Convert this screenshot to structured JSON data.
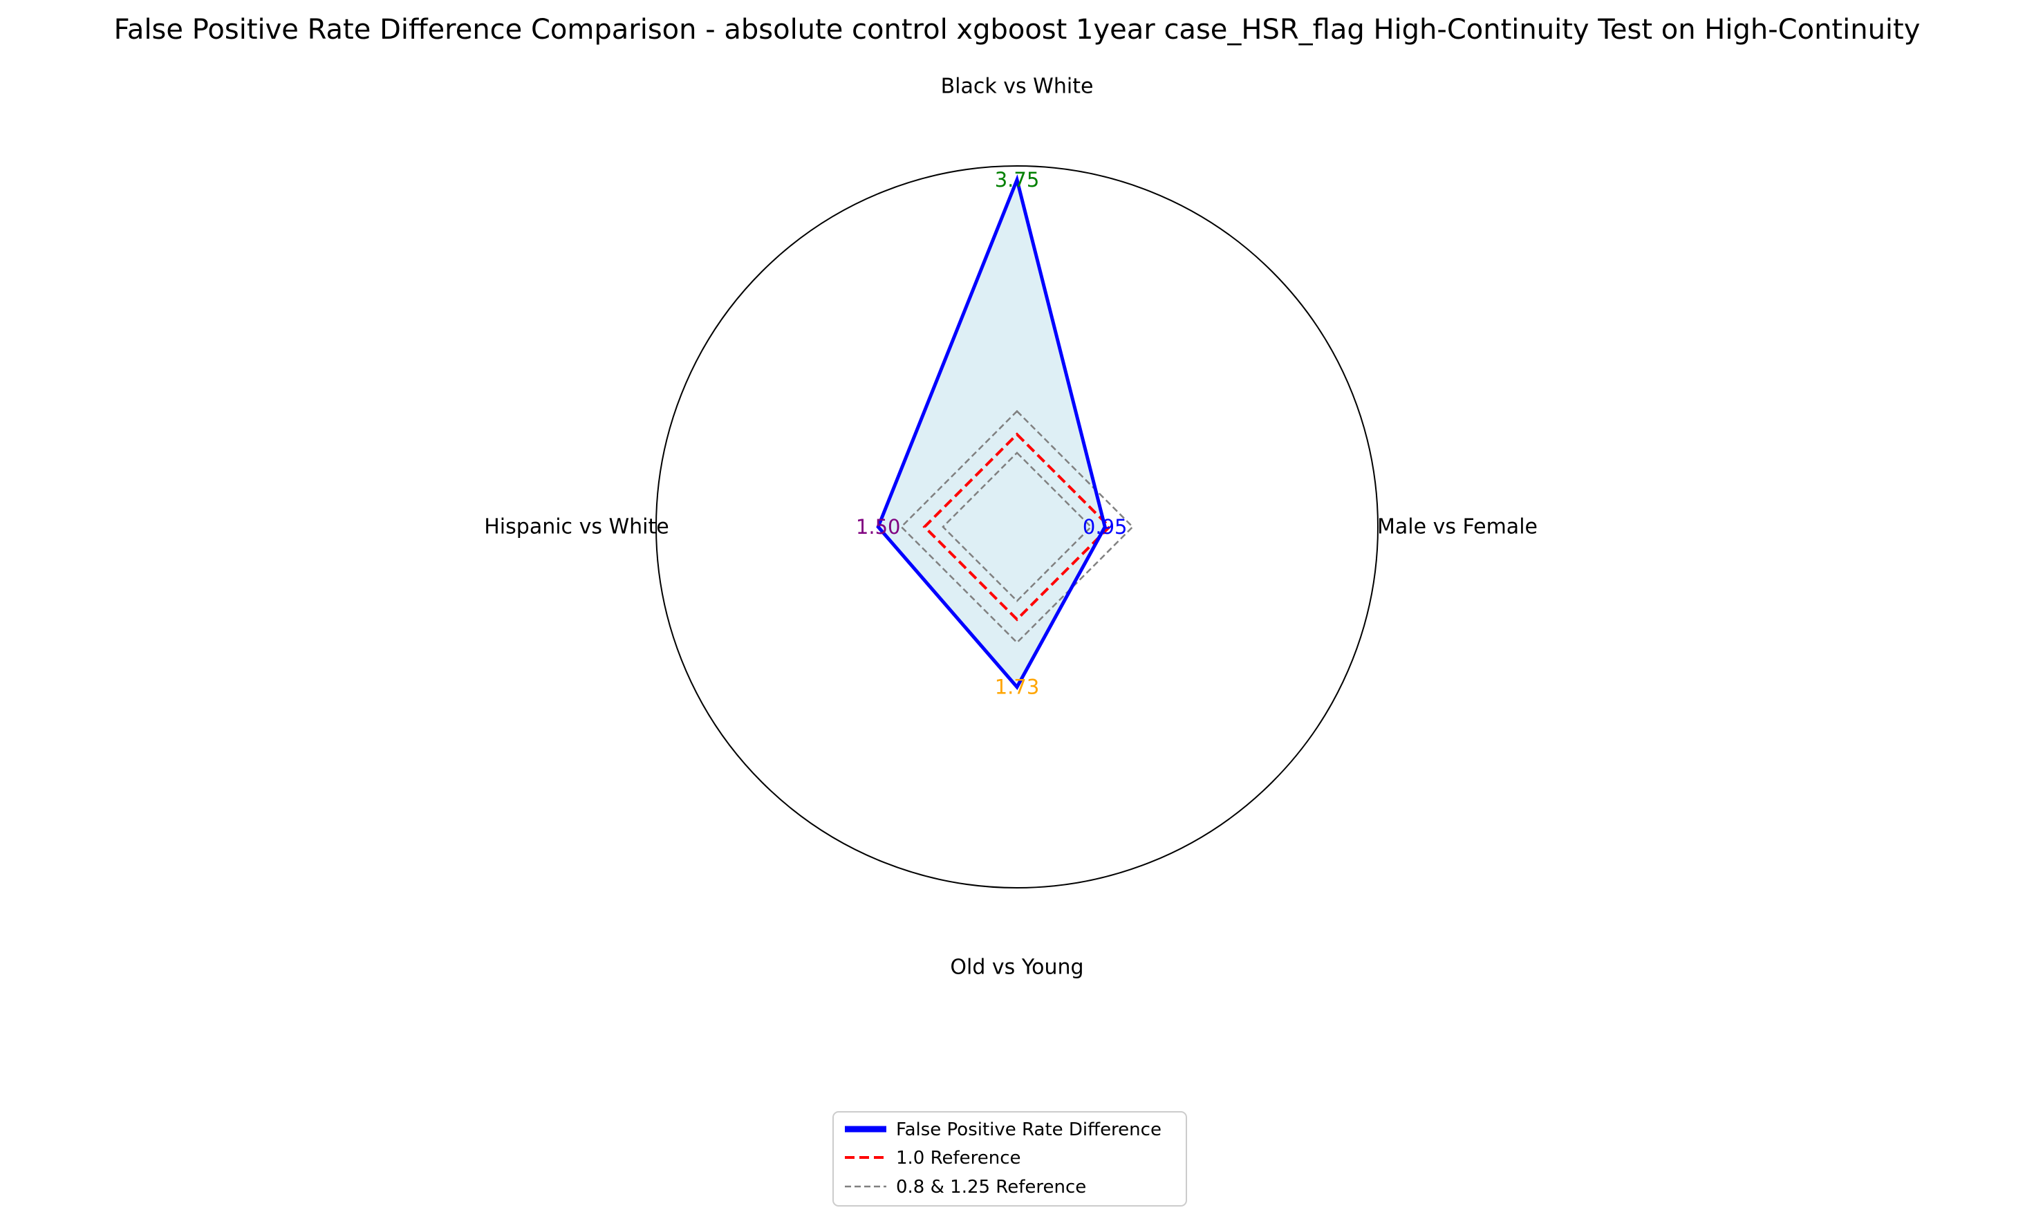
{
  "chart_data": {
    "type": "radar",
    "title": "False Positive Rate Difference Comparison - absolute control xgboost 1year case_HSR_flag High-Continuity Test on High-Continuity",
    "categories": [
      "Black vs White",
      "Male vs Female",
      "Old vs Young",
      "Hispanic vs White"
    ],
    "series": [
      {
        "name": "False Positive Rate Difference",
        "values": [
          3.75,
          0.95,
          1.73,
          1.5
        ],
        "color": "#0000ff",
        "fill": "#add8e6",
        "value_labels": [
          "3.75",
          "0.95",
          "1.73",
          "1.50"
        ],
        "label_colors": [
          "#008000",
          "#0000ff",
          "#ffa500",
          "#800080"
        ]
      },
      {
        "name": "1.0 Reference",
        "values": [
          1.0,
          1.0,
          1.0,
          1.0
        ],
        "color": "#ff0000",
        "style": "dashed"
      },
      {
        "name": "0.8 & 1.25 Reference",
        "values_low": [
          0.8,
          0.8,
          0.8,
          0.8
        ],
        "values_high": [
          1.25,
          1.25,
          1.25,
          1.25
        ],
        "color": "#808080",
        "style": "dashed"
      }
    ],
    "rlim": [
      0,
      3.9
    ],
    "grid": false,
    "legend_position": "bottom-center"
  }
}
